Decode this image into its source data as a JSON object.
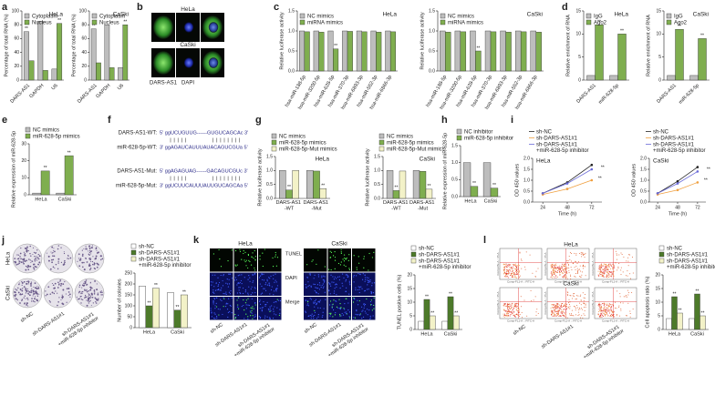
{
  "panels": [
    {
      "label": "a",
      "charts": [
        {
          "type": "bar",
          "title": "HeLa",
          "ylabel": "Percentage of total RNA (%)",
          "categories": [
            "DARS-AS1",
            "GAPDH",
            "U6"
          ],
          "series": [
            {
              "name": "Cytoplasm",
              "color": "#bdbdbd",
              "values": [
                70,
                85,
                16
              ],
              "significance": [
                "**",
                null,
                null
              ]
            },
            {
              "name": "Nucleus",
              "color": "#7fae4f",
              "values": [
                28,
                14,
                82
              ],
              "significance": [
                null,
                null,
                "**"
              ]
            }
          ],
          "ylim": [
            0,
            100
          ],
          "yticks": [
            0,
            20,
            40,
            60,
            80,
            100
          ]
        },
        {
          "type": "bar",
          "title": "CaSki",
          "ylabel": "Percentage of total RNA (%)",
          "categories": [
            "DARS-AS1",
            "GAPDH",
            "U6"
          ],
          "series": [
            {
              "name": "Cytoplasm",
              "color": "#bdbdbd",
              "values": [
                74,
                80,
                18
              ],
              "significance": [
                "**",
                null,
                null
              ]
            },
            {
              "name": "Nucleus",
              "color": "#7fae4f",
              "values": [
                25,
                18,
                80
              ],
              "significance": [
                null,
                null,
                "**"
              ]
            }
          ],
          "ylim": [
            0,
            100
          ],
          "yticks": [
            0,
            20,
            40,
            60,
            80,
            100
          ]
        }
      ]
    },
    {
      "label": "b",
      "cell_lines": [
        "HeLa",
        "CaSki"
      ],
      "stains": [
        "DARS-AS1",
        "DAPI"
      ]
    },
    {
      "label": "c",
      "charts": [
        {
          "type": "bar",
          "title": "HeLa",
          "ylabel": "Relative luciferase activity",
          "categories": [
            "hsa-miR-188-5p",
            "hsa-miR-3200-5p",
            "hsa-miR-628-5p",
            "hsa-miR-370-3p",
            "hsa-miR-6893-3p",
            "hsa-miR-552-3p",
            "hsa-miR-6866-3p"
          ],
          "series": [
            {
              "name": "NC mimics",
              "color": "#bdbdbd",
              "values": [
                1,
                1,
                1,
                1,
                1,
                1,
                1
              ]
            },
            {
              "name": "miRNA mimics",
              "color": "#7fae4f",
              "values": [
                0.98,
                0.97,
                0.55,
                0.99,
                0.98,
                0.97,
                0.98
              ],
              "significance": [
                null,
                null,
                "**",
                null,
                null,
                null,
                null
              ]
            }
          ],
          "ylim": [
            0,
            1.5
          ],
          "yticks": [
            {
              "value": 0,
              "label": "0.0"
            },
            0.5,
            {
              "value": 1,
              "label": "1.0"
            },
            1.5
          ]
        },
        {
          "type": "bar",
          "title": "CaSki",
          "ylabel": "Relative luciferase activity",
          "categories": [
            "hsa-miR-188-5p",
            "hsa-miR-3200-5p",
            "hsa-miR-628-5p",
            "hsa-miR-370-3p",
            "hsa-miR-6893-3p",
            "hsa-miR-552-3p",
            "hsa-miR-6866-3p"
          ],
          "series": [
            {
              "name": "NC mimics",
              "color": "#bdbdbd",
              "values": [
                1,
                1,
                1,
                1,
                1,
                1,
                1
              ]
            },
            {
              "name": "miRNA mimics",
              "color": "#7fae4f",
              "values": [
                0.97,
                0.98,
                0.5,
                0.98,
                0.97,
                0.98,
                0.97
              ],
              "significance": [
                null,
                null,
                "**",
                null,
                null,
                null,
                null
              ]
            }
          ],
          "ylim": [
            0,
            1.5
          ],
          "yticks": [
            {
              "value": 0,
              "label": "0.0"
            },
            0.5,
            {
              "value": 1,
              "label": "1.0"
            },
            1.5
          ]
        }
      ]
    },
    {
      "label": "d",
      "charts": [
        {
          "type": "bar",
          "title": "HeLa",
          "ylabel": "Relative enrichment of RNA",
          "categories": [
            "DARS-AS1",
            "miR-628-5p"
          ],
          "series": [
            {
              "name": "IgG",
              "color": "#bdbdbd",
              "values": [
                1,
                1
              ]
            },
            {
              "name": "Ago2",
              "color": "#7fae4f",
              "values": [
                12,
                10
              ],
              "significance": [
                "**",
                "**"
              ]
            }
          ],
          "ylim": [
            0,
            15
          ],
          "yticks": [
            0,
            5,
            10,
            15
          ]
        },
        {
          "type": "bar",
          "title": "CaSki",
          "ylabel": "Relative enrichment of RNA",
          "categories": [
            "DARS-AS1",
            "miR-628-5p"
          ],
          "series": [
            {
              "name": "IgG",
              "color": "#bdbdbd",
              "values": [
                1,
                1
              ]
            },
            {
              "name": "Ago2",
              "color": "#7fae4f",
              "values": [
                11,
                9
              ],
              "significance": [
                "**",
                "**"
              ]
            }
          ],
          "ylim": [
            0,
            15
          ],
          "yticks": [
            0,
            5,
            10,
            15
          ]
        }
      ]
    },
    {
      "label": "e",
      "charts": [
        {
          "type": "bar",
          "ylabel": "Relative expression of miR-628-5p",
          "categories": [
            "HeLa",
            "CaSki"
          ],
          "series": [
            {
              "name": "NC mimics",
              "color": "#bdbdbd",
              "values": [
                1,
                1
              ]
            },
            {
              "name": "miR-628-5p mimics",
              "color": "#7fae4f",
              "values": [
                14,
                23
              ],
              "significance": [
                "**",
                "**"
              ]
            }
          ],
          "ylim": [
            0,
            30
          ],
          "yticks": [
            0,
            10,
            20,
            30
          ]
        }
      ]
    },
    {
      "label": "f",
      "rows": [
        {
          "name": "DARS-AS1-WT:",
          "sequence": "5' ggUCUGUUG------GUGUCAGCAc 3'"
        },
        {
          "name": "miR-628-5p-WT:",
          "sequence": "3' ggAGAUCAUUUAUACAGUCGUa 5'"
        },
        {
          "name": "DARS-AS1-Mut:",
          "sequence": "5' ggAGAGUAG------GACAGUCGUc 3'"
        },
        {
          "name": "miR-628-5p-Mut:",
          "sequence": "3' ggUCUUCAUUUAUUGUCAGCAa 5'"
        }
      ]
    },
    {
      "label": "g",
      "charts": [
        {
          "type": "bar",
          "title": "HeLa",
          "ylabel": "Relative luciferase activity",
          "categories": [
            "DARS-AS1 -WT",
            "DARS-AS1 -Mut"
          ],
          "series": [
            {
              "name": "NC mimics",
              "color": "#bdbdbd",
              "values": [
                1,
                1
              ]
            },
            {
              "name": "miR-628-5p mimics",
              "color": "#7fae4f",
              "values": [
                0.3,
                0.98
              ],
              "significance": [
                "**",
                null
              ]
            },
            {
              "name": "miR-628-5p-Mut mimics",
              "color": "#f3f2c8",
              "values": [
                1,
                0.35
              ],
              "significance": [
                null,
                "**"
              ]
            }
          ],
          "ylim": [
            0,
            1.5
          ],
          "yticks": [
            {
              "value": 0,
              "label": "0.0"
            },
            0.5,
            {
              "value": 1,
              "label": "1.0"
            },
            1.5
          ]
        },
        {
          "type": "bar",
          "title": "CaSki",
          "ylabel": "Relative luciferase activity",
          "categories": [
            "DARS-AS1 -WT",
            "DARS-AS1 -Mut"
          ],
          "series": [
            {
              "name": "NC mimics",
              "color": "#bdbdbd",
              "values": [
                1,
                1
              ]
            },
            {
              "name": "miR-628-5p mimics",
              "color": "#7fae4f",
              "values": [
                0.28,
                0.97
              ],
              "significance": [
                "**",
                null
              ]
            },
            {
              "name": "miR-628-5p-Mut mimics",
              "color": "#f3f2c8",
              "values": [
                0.98,
                0.33
              ],
              "significance": [
                null,
                "**"
              ]
            }
          ],
          "ylim": [
            0,
            1.5
          ],
          "yticks": [
            {
              "value": 0,
              "label": "0.0"
            },
            0.5,
            {
              "value": 1,
              "label": "1.0"
            },
            1.5
          ]
        }
      ]
    },
    {
      "label": "h",
      "charts": [
        {
          "type": "bar",
          "ylabel": "Relative expression of miR-628-5p",
          "categories": [
            "HeLa",
            "CaSki"
          ],
          "series": [
            {
              "name": "NC inhibitor",
              "color": "#bdbdbd",
              "values": [
                1,
                1
              ]
            },
            {
              "name": "miR-628-5p inhibitor",
              "color": "#7fae4f",
              "values": [
                0.3,
                0.25
              ],
              "significance": [
                "**",
                "**"
              ]
            }
          ],
          "ylim": [
            0,
            1.5
          ],
          "yticks": [
            {
              "value": 0,
              "label": "0.0"
            },
            0.5,
            {
              "value": 1,
              "label": "1.0"
            },
            1.5
          ]
        }
      ]
    },
    {
      "label": "i",
      "charts": [
        {
          "type": "line",
          "title": "HeLa",
          "ylabel": "OD 450 values",
          "xlabel": "Time (h)",
          "x": [
            24,
            48,
            72
          ],
          "series": [
            {
              "name": "sh-NC",
              "color": "#222222",
              "values": [
                0.4,
                0.9,
                1.7
              ]
            },
            {
              "name": "sh-DARS-AS1#1",
              "color": "#f0a040",
              "values": [
                0.35,
                0.6,
                1.0
              ],
              "significance": [
                null,
                null,
                "**"
              ]
            },
            {
              "name": "sh-DARS-AS1#1 +miR-628-5p inhibitor",
              "color": "#6a6ad8",
              "values": [
                0.4,
                0.85,
                1.5
              ],
              "significance": [
                null,
                null,
                "**"
              ]
            }
          ],
          "xlim": [
            14,
            82
          ],
          "xticks": [
            24,
            48,
            72
          ],
          "ylim": [
            0,
            2
          ],
          "yticks": [
            {
              "value": 0,
              "label": "0.0"
            },
            0.5,
            {
              "value": 1,
              "label": "1.0"
            },
            1.5,
            {
              "value": 2,
              "label": "2.0"
            }
          ]
        },
        {
          "type": "line",
          "title": "CaSki",
          "ylabel": "OD 450 values",
          "xlabel": "Time (h)",
          "x": [
            24,
            48,
            72
          ],
          "series": [
            {
              "name": "sh-NC",
              "color": "#222222",
              "values": [
                0.4,
                0.95,
                1.6
              ]
            },
            {
              "name": "sh-DARS-AS1#1",
              "color": "#f0a040",
              "values": [
                0.35,
                0.55,
                0.9
              ],
              "significance": [
                null,
                null,
                "**"
              ]
            },
            {
              "name": "sh-DARS-AS1#1 +miR-628-5p inhibitor",
              "color": "#6a6ad8",
              "values": [
                0.4,
                0.85,
                1.4
              ],
              "significance": [
                null,
                null,
                "**"
              ]
            }
          ],
          "xlim": [
            14,
            82
          ],
          "xticks": [
            24,
            48,
            72
          ],
          "ylim": [
            0,
            2
          ],
          "yticks": [
            {
              "value": 0,
              "label": "0.0"
            },
            0.5,
            {
              "value": 1,
              "label": "1.0"
            },
            1.5,
            {
              "value": 2,
              "label": "2.0"
            }
          ]
        }
      ]
    },
    {
      "label": "j",
      "cell_lines": [
        "HeLa",
        "CaSki"
      ],
      "charts": [
        {
          "type": "bar",
          "ylabel": "Number of colonies",
          "categories": [
            "HeLa",
            "CaSki"
          ],
          "series": [
            {
              "name": "sh-NC",
              "color": "#ffffff",
              "values": [
                190,
                160
              ]
            },
            {
              "name": "sh-DARS-AS1#1",
              "color": "#4d7a2a",
              "values": [
                100,
                80
              ],
              "significance": [
                "**",
                "**"
              ]
            },
            {
              "name": "sh-DARS-AS1#1 +miR-628-5p inhibitor",
              "color": "#f3f2c8",
              "values": [
                180,
                150
              ],
              "significance": [
                "**",
                "**"
              ]
            }
          ],
          "ylim": [
            0,
            250
          ],
          "yticks": [
            0,
            50,
            100,
            150,
            200,
            250
          ]
        }
      ]
    },
    {
      "label": "k",
      "cell_lines": [
        "HeLa",
        "CaSki"
      ],
      "stains": [
        "TUNEL",
        "DAPI",
        "Merge"
      ],
      "charts": [
        {
          "type": "bar",
          "ylabel": "TUNEL positive cells (%)",
          "categories": [
            "HeLa",
            "CaSki"
          ],
          "series": [
            {
              "name": "sh-NC",
              "color": "#ffffff",
              "values": [
                3,
                3
              ]
            },
            {
              "name": "sh-DARS-AS1#1",
              "color": "#4d7a2a",
              "values": [
                11,
                12
              ],
              "significance": [
                "**",
                "**"
              ]
            },
            {
              "name": "sh-DARS-AS1#1 +miR-628-5p inhibitor",
              "color": "#f3f2c8",
              "values": [
                5,
                5
              ],
              "significance": [
                "**",
                "**"
              ]
            }
          ],
          "ylim": [
            0,
            20
          ],
          "yticks": [
            0,
            5,
            10,
            15,
            20
          ]
        }
      ]
    },
    {
      "label": "l",
      "cell_lines": [
        "HeLa",
        "CaSki"
      ],
      "x_axis": "Comp-FL1-A :: FITC-A",
      "y_axis": "Comp-PE-A :: PI-A",
      "charts": [
        {
          "type": "bar",
          "ylabel": "Cell apoptosis ratio (%)",
          "categories": [
            "HeLa",
            "CaSki"
          ],
          "series": [
            {
              "name": "sh-NC",
              "color": "#ffffff",
              "values": [
                4,
                4
              ]
            },
            {
              "name": "sh-DARS-AS1#1",
              "color": "#4d7a2a",
              "values": [
                12,
                13
              ],
              "significance": [
                "**",
                "**"
              ]
            },
            {
              "name": "sh-DARS-AS1#1 +miR-628-5p inhibitor",
              "color": "#f3f2c8",
              "values": [
                6,
                5
              ],
              "significance": [
                "**",
                "**"
              ]
            }
          ],
          "ylim": [
            0,
            20
          ],
          "yticks": [
            0,
            5,
            10,
            15,
            20
          ]
        }
      ]
    }
  ]
}
